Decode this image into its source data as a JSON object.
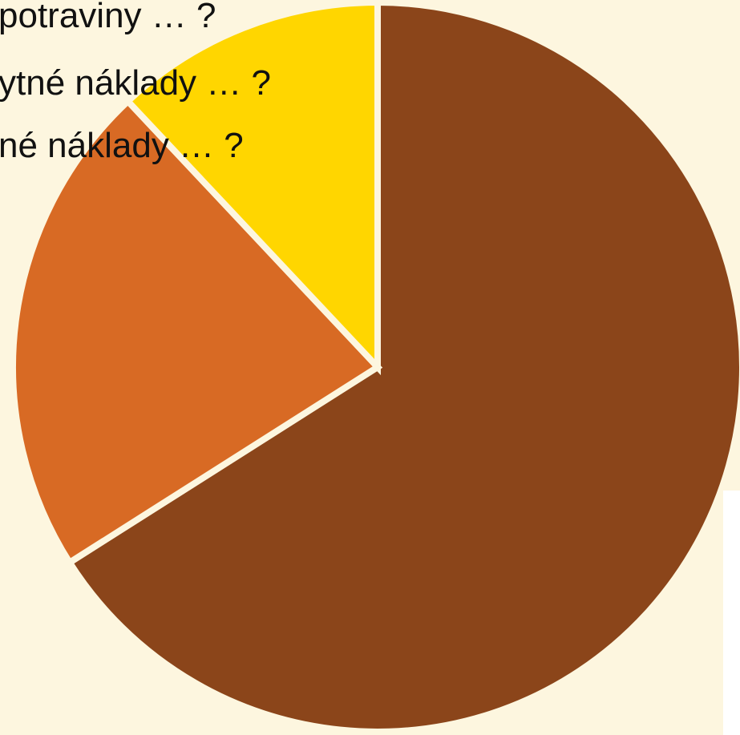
{
  "chart_data": {
    "type": "pie",
    "title": "",
    "start_angle_deg": 0,
    "direction": "clockwise",
    "slices": [
      {
        "label": "",
        "value": 66,
        "color": "#8B451A"
      },
      {
        "label": "otné náklady … ?",
        "value": 22,
        "color": "#D86A24"
      },
      {
        "label": "ytné náklady … ?",
        "value": 12,
        "color": "#FFD600"
      }
    ],
    "labels": [
      "potraviny … ?",
      "ytné náklady … ?",
      "né náklady … ?"
    ],
    "separator_color": "#FDF6DF"
  }
}
